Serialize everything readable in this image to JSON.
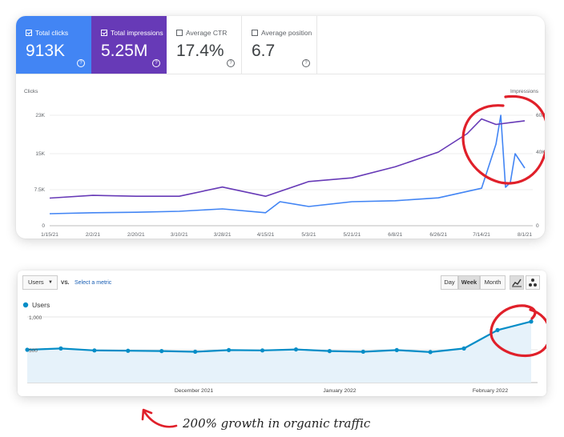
{
  "search_console": {
    "metrics": [
      {
        "label": "Total clicks",
        "value": "913K",
        "checked": true
      },
      {
        "label": "Total impressions",
        "value": "5.25M",
        "checked": true
      },
      {
        "label": "Average CTR",
        "value": "17.4%",
        "checked": false
      },
      {
        "label": "Average position",
        "value": "6.7",
        "checked": false
      }
    ],
    "help_glyph": "?"
  },
  "chart_data": [
    {
      "type": "line",
      "ylabel_left": "Clicks",
      "ylabel_right": "Impressions",
      "y_ticks_left": [
        "23K",
        "15K",
        "7.5K",
        "0"
      ],
      "y_ticks_right": [
        "60K",
        "40K",
        "0"
      ],
      "x_ticks": [
        "1/15/21",
        "2/2/21",
        "2/20/21",
        "3/10/21",
        "3/28/21",
        "4/15/21",
        "5/3/21",
        "5/21/21",
        "6/8/21",
        "6/26/21",
        "7/14/21",
        "8/1/21"
      ],
      "ylim_left": [
        0,
        23000
      ],
      "ylim_right": [
        0,
        60000
      ],
      "grid": true,
      "series": [
        {
          "name": "Clicks",
          "axis": "left",
          "color": "#4285f4",
          "x": [
            "2021-01-15",
            "2021-02-02",
            "2021-02-20",
            "2021-03-10",
            "2021-03-28",
            "2021-04-15",
            "2021-04-21",
            "2021-05-03",
            "2021-05-21",
            "2021-06-08",
            "2021-06-26",
            "2021-07-14",
            "2021-07-20",
            "2021-07-22",
            "2021-07-24",
            "2021-07-26",
            "2021-07-28",
            "2021-08-01"
          ],
          "values": [
            2500,
            2700,
            2800,
            3000,
            3500,
            2700,
            5000,
            4000,
            5000,
            5200,
            5800,
            7800,
            17000,
            23000,
            8000,
            9000,
            15000,
            12000
          ]
        },
        {
          "name": "Impressions",
          "axis": "right",
          "color": "#673ab7",
          "x": [
            "2021-01-15",
            "2021-02-02",
            "2021-02-20",
            "2021-03-10",
            "2021-03-28",
            "2021-04-15",
            "2021-05-03",
            "2021-05-21",
            "2021-06-08",
            "2021-06-26",
            "2021-07-08",
            "2021-07-14",
            "2021-07-20",
            "2021-07-26",
            "2021-08-01"
          ],
          "values": [
            15000,
            16500,
            16000,
            16000,
            21000,
            16000,
            24000,
            26000,
            32000,
            40000,
            50000,
            58000,
            55000,
            56000,
            57000
          ]
        }
      ]
    },
    {
      "type": "area",
      "series_name": "Users",
      "color": "#058dc7",
      "y_ticks": [
        "1,000",
        "500"
      ],
      "ylim": [
        0,
        1000
      ],
      "x_ticks": [
        "December 2021",
        "January 2022",
        "February 2022"
      ],
      "values": [
        500,
        520,
        490,
        485,
        480,
        470,
        495,
        490,
        505,
        480,
        470,
        495,
        465,
        520,
        800,
        930
      ],
      "grid": true
    }
  ],
  "analytics": {
    "metric_select": "Users",
    "vs_label": "VS.",
    "select_metric_link": "Select a metric",
    "range_buttons": [
      "Day",
      "Week",
      "Month"
    ],
    "active_range": "Week",
    "legend_label": "Users"
  },
  "annotation": {
    "caption": "200% growth in organic traffic",
    "highlight_color": "#e0202a"
  }
}
